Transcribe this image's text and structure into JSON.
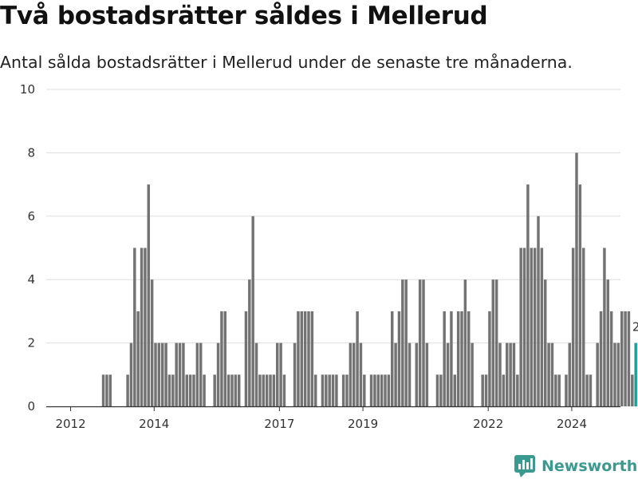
{
  "page": {
    "title": "Två bostadsrätter såldes i Mellerud",
    "subtitle": "Antal sålda bostadsrätter i Mellerud under de senaste tre månaderna.",
    "logo_text": "Newsworthy"
  },
  "colors": {
    "bar": "#737373",
    "highlight": "#1f9e95",
    "grid": "#dddddd",
    "axis": "#333333"
  },
  "chart_data": {
    "type": "bar",
    "title": "Två bostadsrätter såldes i Mellerud",
    "subtitle": "Antal sålda bostadsrätter i Mellerud under de senaste tre månaderna.",
    "xlabel": "",
    "ylabel": "",
    "x_range": [
      "2011-06",
      "2025-03"
    ],
    "x_ticks": [
      {
        "date": "2012-01",
        "label": "2012"
      },
      {
        "date": "2014-01",
        "label": "2014"
      },
      {
        "date": "2017-01",
        "label": "2017"
      },
      {
        "date": "2019-01",
        "label": "2019"
      },
      {
        "date": "2022-01",
        "label": "2022"
      },
      {
        "date": "2024-01",
        "label": "2024"
      }
    ],
    "ylim": [
      0,
      10
    ],
    "y_ticks": [
      0,
      2,
      4,
      6,
      8,
      10
    ],
    "grid": true,
    "start": "2011-06",
    "values": [
      0,
      0,
      0,
      0,
      0,
      0,
      0,
      0,
      0,
      0,
      0,
      0,
      0,
      0,
      0,
      0,
      1,
      1,
      1,
      0,
      0,
      0,
      0,
      1,
      2,
      5,
      3,
      5,
      5,
      7,
      4,
      2,
      2,
      2,
      2,
      1,
      1,
      2,
      2,
      2,
      1,
      1,
      1,
      2,
      2,
      1,
      0,
      0,
      1,
      2,
      3,
      3,
      1,
      1,
      1,
      1,
      0,
      3,
      4,
      6,
      2,
      1,
      1,
      1,
      1,
      1,
      2,
      2,
      1,
      0,
      0,
      2,
      3,
      3,
      3,
      3,
      3,
      1,
      0,
      1,
      1,
      1,
      1,
      1,
      0,
      1,
      1,
      2,
      2,
      3,
      2,
      1,
      0,
      1,
      1,
      1,
      1,
      1,
      1,
      3,
      2,
      3,
      4,
      4,
      2,
      0,
      2,
      4,
      4,
      2,
      0,
      0,
      1,
      1,
      3,
      2,
      3,
      1,
      3,
      3,
      4,
      3,
      2,
      0,
      0,
      1,
      1,
      3,
      4,
      4,
      2,
      1,
      2,
      2,
      2,
      1,
      5,
      5,
      7,
      5,
      5,
      6,
      5,
      4,
      2,
      2,
      1,
      1,
      0,
      1,
      2,
      5,
      8,
      7,
      5,
      1,
      1,
      0,
      2,
      3,
      5,
      4,
      3,
      2,
      2,
      3,
      3,
      3,
      1,
      2
    ],
    "highlight_last": true,
    "last_label": "2"
  }
}
